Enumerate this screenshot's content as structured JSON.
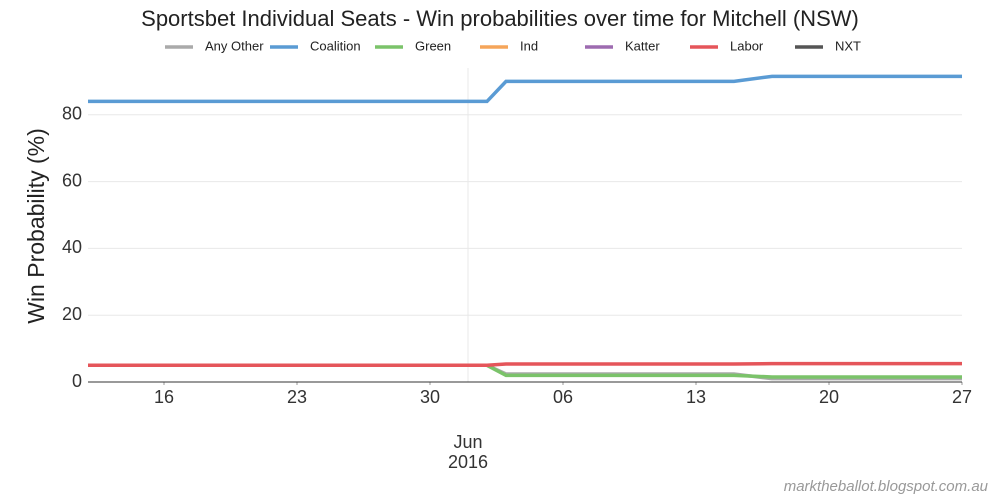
{
  "chart_data": {
    "type": "line",
    "title": "Sportsbet Individual Seats - Win probabilities over time for Mitchell (NSW)",
    "ylabel": "Win Probability (%)",
    "source": "marktheballot.blogspot.com.au",
    "x": [
      "2016-05-12",
      "2016-06-02",
      "2016-06-03",
      "2016-06-15",
      "2016-06-17",
      "2016-06-27"
    ],
    "series": [
      {
        "name": "Any Other",
        "color": "#aaaaaa",
        "values": [
          5,
          5,
          2.4,
          2.4,
          1,
          1
        ]
      },
      {
        "name": "Coalition",
        "color": "#5a9bd4",
        "values": [
          84,
          84,
          90,
          90,
          91.5,
          91.5
        ]
      },
      {
        "name": "Green",
        "color": "#7bc36a",
        "values": [
          5,
          5,
          2,
          2,
          1.5,
          1.5
        ]
      },
      {
        "name": "Ind",
        "color": "#f5a55a",
        "values": [
          null,
          null,
          null,
          null,
          null,
          null
        ]
      },
      {
        "name": "Katter",
        "color": "#9d6bb0",
        "values": [
          null,
          null,
          null,
          null,
          null,
          null
        ]
      },
      {
        "name": "Labor",
        "color": "#e5555a",
        "values": [
          5,
          5,
          5.4,
          5.4,
          5.5,
          5.5
        ]
      },
      {
        "name": "NXT",
        "color": "#555555",
        "values": [
          null,
          null,
          null,
          null,
          null,
          null
        ]
      }
    ],
    "xlim": [
      "2016-05-12",
      "2016-06-27"
    ],
    "xticks": [
      {
        "value": "2016-05-16",
        "label": "16"
      },
      {
        "value": "2016-05-23",
        "label": "23"
      },
      {
        "value": "2016-05-30",
        "label": "30"
      },
      {
        "value": "2016-06-06",
        "label": "06"
      },
      {
        "value": "2016-06-13",
        "label": "13"
      },
      {
        "value": "2016-06-20",
        "label": "20"
      },
      {
        "value": "2016-06-27",
        "label": "27"
      }
    ],
    "xticks_major": [
      {
        "value": "2016-06-01",
        "label": "Jun\n2016"
      }
    ],
    "ylim": [
      0,
      94
    ],
    "yticks": [
      0,
      20,
      40,
      60,
      80
    ],
    "grid": true
  }
}
